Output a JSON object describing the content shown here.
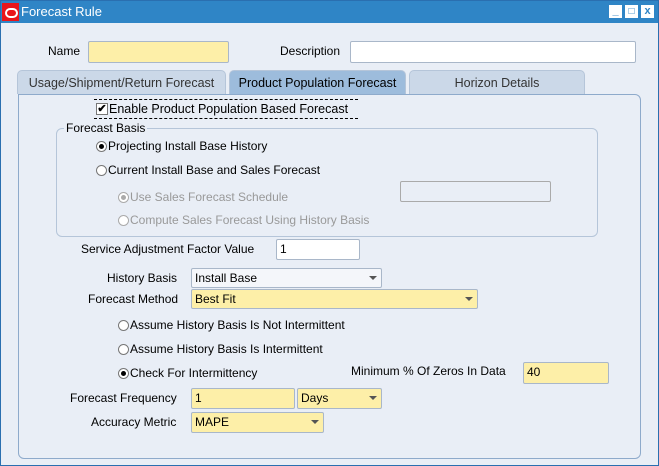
{
  "window": {
    "title": "Forecast Rule",
    "minimize": "_",
    "maximize": "□",
    "close": "x"
  },
  "header": {
    "name_label": "Name",
    "name_value": "",
    "description_label": "Description",
    "description_value": ""
  },
  "tabs": [
    {
      "label": "Usage/Shipment/Return Forecast"
    },
    {
      "label": "Product Population Forecast",
      "active": true
    },
    {
      "label": "Horizon Details"
    }
  ],
  "enable": {
    "label": "Enable Product Population Based Forecast",
    "checked": true
  },
  "forecast_basis": {
    "title": "Forecast Basis",
    "options": [
      {
        "label": "Projecting Install Base History",
        "selected": true
      },
      {
        "label": "Current Install Base and Sales Forecast",
        "selected": false
      }
    ],
    "sub_options": [
      {
        "label": "Use Sales Forecast Schedule",
        "selected": true,
        "disabled": true
      },
      {
        "label": "Compute Sales Forecast Using History Basis",
        "selected": false,
        "disabled": true
      }
    ],
    "schedule_value": ""
  },
  "service_adjustment": {
    "label": "Service Adjustment Factor Value",
    "value": "1"
  },
  "history_basis": {
    "label": "History Basis",
    "value": "Install Base"
  },
  "forecast_method": {
    "label": "Forecast Method",
    "value": "Best Fit"
  },
  "intermittency": {
    "options": [
      {
        "label": "Assume History Basis Is Not Intermittent",
        "selected": false
      },
      {
        "label": "Assume History Basis Is Intermittent",
        "selected": false
      },
      {
        "label": "Check For Intermittency",
        "selected": true
      }
    ]
  },
  "min_zeros": {
    "label": "Minimum % Of Zeros In Data",
    "value": "40"
  },
  "forecast_frequency": {
    "label": "Forecast Frequency",
    "value": "1",
    "unit": "Days"
  },
  "accuracy_metric": {
    "label": "Accuracy Metric",
    "value": "MAPE"
  },
  "colors": {
    "titlebar": "#2f85c6",
    "required_field": "#fdefa8",
    "background": "#e9eef6"
  }
}
